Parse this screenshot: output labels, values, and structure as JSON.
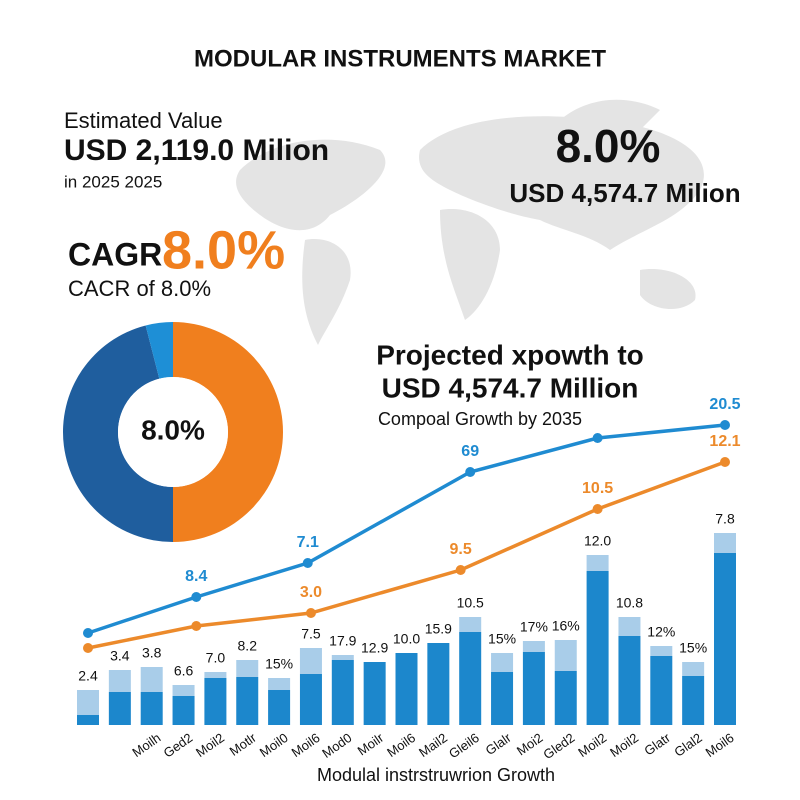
{
  "title": "MODULAR INSTRUMENTS MARKET",
  "left": {
    "label": "Estimated Value",
    "value": "USD 2,119.0 Milion",
    "year": "in 2025 2025",
    "cagr_label": "CAGR",
    "cagr_value": "8.0%",
    "cagr_sub": "CACR of 8.0%"
  },
  "right": {
    "value": "8.0%",
    "sub": "USD 4,574.7 Milion"
  },
  "chart_data": [
    {
      "type": "donut",
      "center_label": "8.0%",
      "values": [
        50,
        46,
        4
      ],
      "colors": [
        "#f07f1e",
        "#1f5e9e",
        "#1e8fd6"
      ]
    },
    {
      "type": "combo",
      "title": "Projected xpowth to",
      "title2": "USD 4,574.7 Million",
      "subtitle": "Compoal Growth by 2035",
      "x_label": "Modulal instrstruwrion Growth",
      "categories": [
        null,
        null,
        "Moilh",
        "Ged2",
        "Moil2",
        "Motlr",
        "Moil0",
        "Moil6",
        "Mod0",
        "Moilr",
        "Moil6",
        "Mail2",
        "Gleil6",
        "Glalr",
        "Moi2",
        "Gled2",
        "Moil2",
        "Moil2",
        "Glatr",
        "Glal2",
        "Moil6"
      ],
      "bar_labels": [
        "2.4",
        "3.4",
        "3.8",
        "6.6",
        "7.0",
        "8.2",
        "15%",
        "7.5",
        "17.9",
        "12.9",
        "10.0",
        "15.9",
        "10.5",
        "15%",
        "17%",
        "16%",
        "12.0",
        "10.8",
        "12%",
        "15%",
        "7.8"
      ],
      "series": [
        {
          "color": "#1c87cc",
          "values": [
            5,
            16.5,
            16.5,
            14.5,
            23.5,
            24,
            17.5,
            25.5,
            32.5,
            31.5,
            36,
            41,
            46.5,
            26.5,
            36.5,
            27,
            77,
            44.5,
            34.5,
            24.5,
            86
          ]
        },
        {
          "color": "#a9cde9",
          "values": [
            12.5,
            11,
            12.5,
            5.5,
            3,
            8.5,
            6,
            13,
            2.5,
            0,
            0,
            0,
            7.5,
            9.5,
            5.5,
            15.5,
            8,
            9.5,
            5,
            7,
            10
          ]
        }
      ],
      "lines": [
        {
          "color": "#1f8bd1",
          "x": [
            0,
            3.4,
            6.9,
            12.0,
            16.0,
            20.0
          ],
          "values": [
            46,
            64,
            81,
            126.5,
            143.5,
            150
          ],
          "labels": [
            null,
            "8.4",
            "7.1",
            "69",
            null,
            "20.5"
          ]
        },
        {
          "color": "#ec8a2b",
          "x": [
            0,
            3.4,
            7.0,
            11.7,
            16.0,
            20.0
          ],
          "values": [
            38.5,
            49.5,
            56,
            77.5,
            108,
            131.5
          ],
          "labels": [
            null,
            null,
            "3.0",
            "9.5",
            "10.5",
            "12.1"
          ]
        }
      ],
      "xlim": [
        0,
        20
      ],
      "ylim": [
        0,
        175
      ]
    }
  ]
}
